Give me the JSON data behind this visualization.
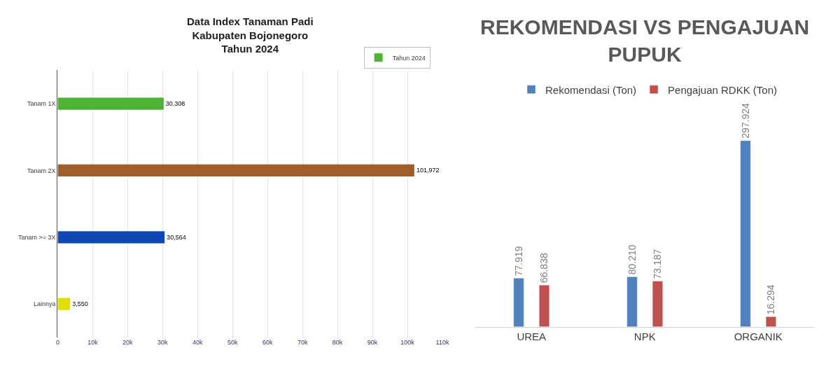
{
  "chart_data": [
    {
      "type": "bar",
      "title": "Data Index Tanaman Padi\nKabupaten Bojonegoro\nTahun 2024",
      "orientation": "horizontal",
      "categories": [
        "Tanam 1X",
        "Tanam 2X",
        "Tanam >= 3X",
        "Lainnya"
      ],
      "series": [
        {
          "name": "Tahun 2024",
          "color": "#c8c8c8",
          "colors": [
            "#4eb232",
            "#a05e2b",
            "#0f48b4",
            "#dfe000"
          ],
          "values": [
            30308,
            101972,
            30564,
            3550
          ],
          "value_labels": [
            "30,308",
            "101,972",
            "30,564",
            "3,550"
          ]
        }
      ],
      "xlim": [
        0,
        110000
      ],
      "xticks": [
        {
          "value": 0,
          "label": "0"
        },
        {
          "value": 10000,
          "label": "10k"
        },
        {
          "value": 20000,
          "label": "20k"
        },
        {
          "value": 30000,
          "label": "30k"
        },
        {
          "value": 40000,
          "label": "40k"
        },
        {
          "value": 50000,
          "label": "50k"
        },
        {
          "value": 60000,
          "label": "60k"
        },
        {
          "value": 70000,
          "label": "70k"
        },
        {
          "value": 80000,
          "label": "80k"
        },
        {
          "value": 90000,
          "label": "90k"
        },
        {
          "value": 100000,
          "label": "100k"
        },
        {
          "value": 110000,
          "label": "110k"
        }
      ],
      "grid": "x",
      "legend": "top right"
    },
    {
      "type": "bar",
      "title": "REKOMENDASI VS PENGAJUAN PUPUK",
      "categories": [
        "UREA",
        "NPK",
        "ORGANIK"
      ],
      "series": [
        {
          "name": "Rekomendasi (Ton)",
          "color": "#4f81bd",
          "values": [
            77.919,
            80.21,
            297.924
          ],
          "value_labels": [
            "77.919",
            "80.210",
            "297.924"
          ]
        },
        {
          "name": "Pengajuan RDKK (Ton)",
          "color": "#c0504d",
          "values": [
            66.838,
            73.187,
            16.294
          ],
          "value_labels": [
            "66.838",
            "73.187",
            "16.294"
          ]
        }
      ],
      "legend": "top"
    }
  ]
}
